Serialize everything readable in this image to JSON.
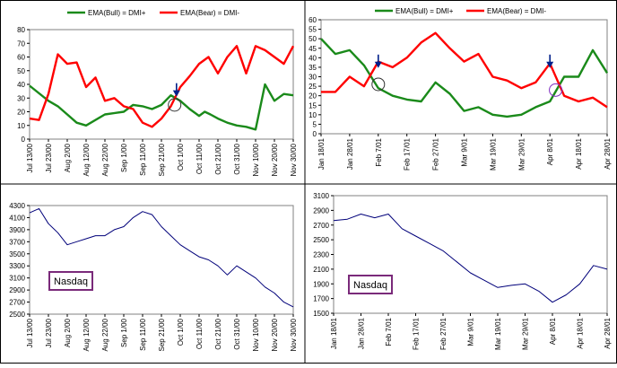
{
  "colors": {
    "bull": "#1a8a1a",
    "bear": "#ff0000",
    "nasdaq": "#00007a",
    "arrow": "#00208a",
    "circle_dark": "#333333",
    "circle_purple": "#8030c0",
    "label_border": "#7a2a7a",
    "frame": "#000000"
  },
  "chart_data": [
    {
      "id": "tl",
      "type": "line",
      "legend": {
        "placement": "top",
        "entries": [
          "EMA(Bull) = DMI+",
          "EMA(Bear) = DMI-"
        ]
      },
      "ylim": [
        0,
        80
      ],
      "yticks": [
        0,
        10,
        20,
        30,
        40,
        50,
        60,
        70,
        80
      ],
      "tick_labels": [
        "Jul 13/00",
        "Jul 23/00",
        "Aug 2/00",
        "Aug 12/00",
        "Aug 22/00",
        "Sep 1/00",
        "Sep 11/00",
        "Sep 21/00",
        "Oct 1/00",
        "Oct 11/00",
        "Oct 21/00",
        "Oct 31/00",
        "Nov 10/00",
        "Nov 20/00",
        "Nov 30/00"
      ],
      "series": [
        {
          "name": "EMA(Bull) = DMI+",
          "color_key": "bull",
          "x": [
            0,
            1,
            1.5,
            2,
            2.5,
            3,
            4,
            5,
            5.5,
            6,
            6.5,
            7,
            7.5,
            8,
            8.5,
            9,
            9.3,
            9.6,
            10,
            10.5,
            11,
            11.5,
            12,
            12.5,
            13,
            13.5,
            14
          ],
          "values": [
            39,
            28,
            24,
            18,
            12,
            10,
            18,
            20,
            25,
            24,
            22,
            25,
            32,
            28,
            22,
            17,
            20,
            18,
            15,
            12,
            10,
            9,
            7,
            40,
            28,
            33,
            32
          ]
        },
        {
          "name": "EMA(Bear) = DMI-",
          "color_key": "bear",
          "x": [
            0,
            0.5,
            1,
            1.5,
            2,
            2.5,
            3,
            3.5,
            4,
            4.5,
            5,
            5.5,
            6,
            6.5,
            7,
            7.5,
            8,
            8.5,
            9,
            9.5,
            10,
            10.5,
            11,
            11.5,
            12,
            12.5,
            13,
            13.5,
            14
          ],
          "values": [
            15,
            14,
            33,
            62,
            55,
            56,
            38,
            45,
            28,
            30,
            24,
            22,
            12,
            9,
            15,
            24,
            38,
            46,
            55,
            60,
            48,
            60,
            68,
            48,
            68,
            65,
            60,
            55,
            68
          ]
        }
      ],
      "annotations": [
        {
          "type": "arrow",
          "x": 7.8,
          "y": 33,
          "color_key": "arrow"
        },
        {
          "type": "circle",
          "x": 7.7,
          "y": 25,
          "color_key": "circle_dark"
        }
      ]
    },
    {
      "id": "tr",
      "type": "line",
      "legend": {
        "placement": "top",
        "entries": [
          "EMA(Bull) = DMI+",
          "EMA(Bear) = DMI-"
        ]
      },
      "ylim": [
        0,
        60
      ],
      "yticks": [
        0,
        5,
        10,
        15,
        20,
        25,
        30,
        35,
        40,
        45,
        50,
        55,
        60
      ],
      "tick_labels": [
        "Jan 18/01",
        "Jan 28/01",
        "Feb 7/01",
        "Feb 17/01",
        "Feb 27/01",
        "Mar 9/01",
        "Mar 19/01",
        "Mar 29/01",
        "Apr 8/01",
        "Apr 18/01",
        "Apr 28/01"
      ],
      "series": [
        {
          "name": "EMA(Bull) = DMI+",
          "color_key": "bull",
          "x": [
            0,
            0.5,
            1,
            1.5,
            2,
            2.5,
            3,
            3.5,
            4,
            4.5,
            5,
            5.5,
            6,
            6.5,
            7,
            7.5,
            8,
            8.5,
            9,
            9.5,
            10
          ],
          "values": [
            50,
            42,
            44,
            36,
            24,
            20,
            18,
            17,
            27,
            21,
            12,
            14,
            10,
            9,
            10,
            14,
            17,
            30,
            30,
            44,
            32
          ]
        },
        {
          "name": "EMA(Bear) = DMI-",
          "color_key": "bear",
          "x": [
            0,
            0.5,
            1,
            1.5,
            2,
            2.5,
            3,
            3.5,
            4,
            4.5,
            5,
            5.5,
            6,
            6.5,
            7,
            7.5,
            8,
            8.5,
            9,
            9.5,
            10
          ],
          "values": [
            22,
            22,
            30,
            25,
            38,
            35,
            40,
            48,
            53,
            45,
            38,
            42,
            30,
            28,
            24,
            27,
            37,
            20,
            17,
            19,
            14
          ]
        }
      ],
      "annotations": [
        {
          "type": "arrow",
          "x": 2.0,
          "y": 36,
          "color_key": "arrow"
        },
        {
          "type": "circle",
          "x": 2.0,
          "y": 26,
          "color_key": "circle_dark"
        },
        {
          "type": "arrow",
          "x": 8.0,
          "y": 36,
          "color_key": "arrow"
        },
        {
          "type": "circle",
          "x": 8.2,
          "y": 23,
          "color_key": "circle_purple"
        }
      ]
    },
    {
      "id": "bl",
      "type": "line",
      "label": "Nasdaq",
      "ylim": [
        2500,
        4300
      ],
      "yticks": [
        2500,
        2700,
        2900,
        3100,
        3300,
        3500,
        3700,
        3900,
        4100,
        4300
      ],
      "tick_labels": [
        "Jul 13/00",
        "Jul 23/00",
        "Aug 2/00",
        "Aug 12/00",
        "Aug 22/00",
        "Sep 1/00",
        "Sep 11/00",
        "Sep 21/00",
        "Oct 1/00",
        "Oct 11/00",
        "Oct 21/00",
        "Oct 31/00",
        "Nov 10/00",
        "Nov 20/00",
        "Nov 30/00"
      ],
      "series": [
        {
          "name": "Nasdaq",
          "color_key": "nasdaq",
          "x": [
            0,
            0.5,
            1,
            1.5,
            2,
            2.5,
            3,
            3.5,
            4,
            4.5,
            5,
            5.5,
            6,
            6.5,
            7,
            7.5,
            8,
            8.5,
            9,
            9.5,
            10,
            10.5,
            11,
            11.5,
            12,
            12.5,
            13,
            13.5,
            14
          ],
          "values": [
            4180,
            4250,
            4000,
            3850,
            3650,
            3700,
            3750,
            3800,
            3800,
            3900,
            3950,
            4100,
            4200,
            4150,
            3950,
            3800,
            3650,
            3550,
            3450,
            3400,
            3300,
            3150,
            3300,
            3200,
            3100,
            2950,
            2850,
            2700,
            2620
          ]
        }
      ]
    },
    {
      "id": "br",
      "type": "line",
      "label": "Nasdaq",
      "ylim": [
        1500,
        3100
      ],
      "yticks": [
        1500,
        1700,
        1900,
        2100,
        2300,
        2500,
        2700,
        2900,
        3100
      ],
      "tick_labels": [
        "Jan 18/01",
        "Jan 28/01",
        "Feb 7/01",
        "Feb 17/01",
        "Feb 27/01",
        "Mar 9/01",
        "Mar 19/01",
        "Mar 29/01",
        "Apr 8/01",
        "Apr 18/01",
        "Apr 28/01"
      ],
      "series": [
        {
          "name": "Nasdaq",
          "color_key": "nasdaq",
          "x": [
            0,
            0.5,
            1,
            1.5,
            2,
            2.5,
            3,
            3.5,
            4,
            4.5,
            5,
            5.5,
            6,
            6.5,
            7,
            7.5,
            8,
            8.5,
            9,
            9.5,
            10
          ],
          "values": [
            2760,
            2780,
            2850,
            2800,
            2850,
            2650,
            2550,
            2450,
            2350,
            2200,
            2050,
            1950,
            1850,
            1880,
            1900,
            1800,
            1650,
            1750,
            1900,
            2150,
            2100
          ]
        }
      ]
    }
  ]
}
